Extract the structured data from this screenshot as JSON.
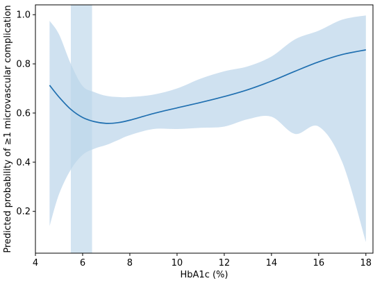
{
  "chart_data": {
    "type": "line",
    "xlabel": "HbA1c (%)",
    "ylabel": "Predicted probability of ≥1 microvascular complication",
    "xlim": [
      4,
      18.3
    ],
    "ylim": [
      0.03,
      1.04
    ],
    "xticks": [
      4,
      6,
      8,
      10,
      12,
      14,
      16,
      18
    ],
    "yticks": [
      0.2,
      0.4,
      0.6,
      0.8,
      1.0
    ],
    "xtick_labels": [
      "4",
      "6",
      "8",
      "10",
      "12",
      "14",
      "16",
      "18"
    ],
    "ytick_labels": [
      "0.2",
      "0.4",
      "0.6",
      "0.8",
      "1.0"
    ],
    "grid": false,
    "highlight_band": {
      "x_start": 5.5,
      "x_end": 6.4,
      "color": "#bcd5ea"
    },
    "series": [
      {
        "color": "#1f6fb0",
        "band_color": "#cfe1f0",
        "x": [
          4.6,
          5.0,
          5.5,
          6.0,
          6.5,
          7.0,
          7.5,
          8.0,
          9.0,
          10.0,
          11.0,
          12.0,
          13.0,
          14.0,
          15.0,
          16.0,
          17.0,
          18.0
        ],
        "y": [
          0.713,
          0.665,
          0.615,
          0.582,
          0.565,
          0.558,
          0.561,
          0.571,
          0.598,
          0.621,
          0.643,
          0.667,
          0.695,
          0.73,
          0.77,
          0.808,
          0.838,
          0.857
        ],
        "lower": [
          0.14,
          0.27,
          0.37,
          0.43,
          0.455,
          0.47,
          0.49,
          0.51,
          0.535,
          0.535,
          0.54,
          0.545,
          0.575,
          0.585,
          0.515,
          0.545,
          0.4,
          0.075
        ],
        "upper": [
          0.975,
          0.92,
          0.8,
          0.71,
          0.685,
          0.67,
          0.665,
          0.665,
          0.675,
          0.7,
          0.74,
          0.77,
          0.79,
          0.83,
          0.9,
          0.935,
          0.98,
          0.997
        ]
      }
    ]
  }
}
